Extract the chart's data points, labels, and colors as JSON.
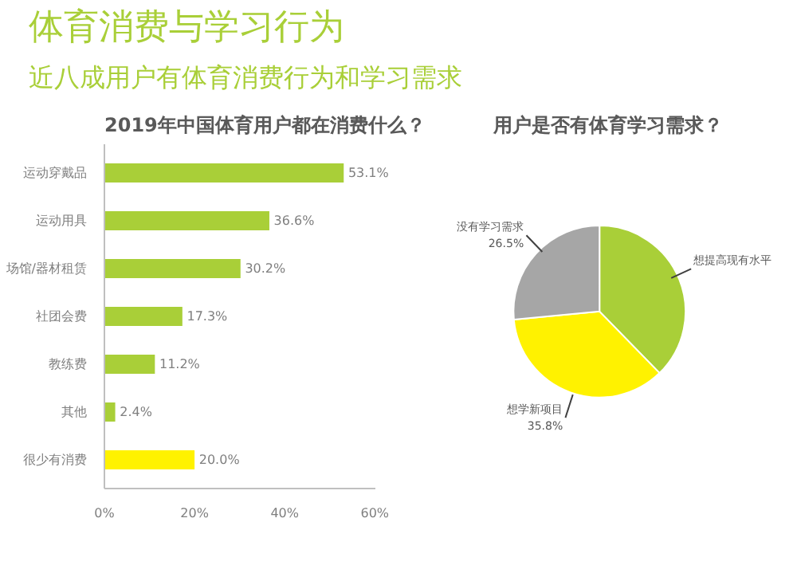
{
  "chart_data": [
    {
      "type": "bar",
      "orientation": "horizontal",
      "title": "2019年中国体育用户都在消费什么？",
      "annotations": [
        "体育消费与学习行为",
        "近八成用户有体育消费行为和学习需求"
      ],
      "categories": [
        "运动穿戴品",
        "运动用具",
        "场馆/器材租赁",
        "社团会费",
        "教练费",
        "其他",
        "很少有消费"
      ],
      "values": [
        53.1,
        36.6,
        30.2,
        17.3,
        11.2,
        2.4,
        20.0
      ],
      "colors": [
        "#a9cf38",
        "#a9cf38",
        "#a9cf38",
        "#a9cf38",
        "#a9cf38",
        "#a9cf38",
        "#fff200"
      ],
      "value_labels": [
        "53.1%",
        "36.6%",
        "30.2%",
        "17.3%",
        "11.2%",
        "2.4%",
        "20.0%"
      ],
      "xlim": [
        0,
        60
      ],
      "xticks": [
        {
          "value": 0,
          "label": "0%"
        },
        {
          "value": 20,
          "label": "20%"
        },
        {
          "value": 40,
          "label": "40%"
        },
        {
          "value": 60,
          "label": "60%"
        }
      ],
      "grid": false
    },
    {
      "type": "pie",
      "title": "用户是否有体育学习需求？",
      "categories": [
        "想提高现有水平",
        "想学新项目",
        "没有学习需求"
      ],
      "values": [
        37.7,
        35.8,
        26.5
      ],
      "colors": [
        "#a9cf38",
        "#fff200",
        "#a6a6a6"
      ],
      "value_labels": [
        null,
        "35.8%",
        "26.5%"
      ]
    }
  ]
}
